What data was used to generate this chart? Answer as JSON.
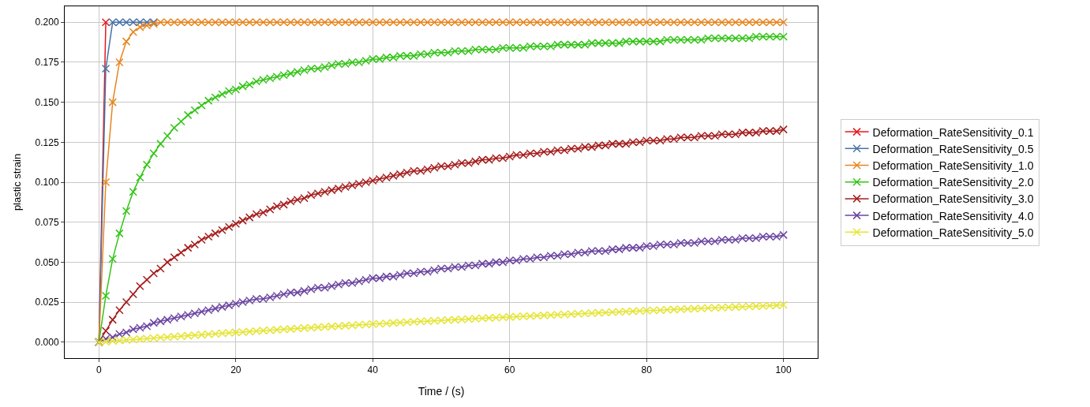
{
  "chart_data": {
    "type": "line",
    "xlabel": "Time / (s)",
    "ylabel": "plastic strain",
    "marker": "cross",
    "line_style": "solid",
    "grid": true,
    "legend": "right",
    "xlim": [
      -5,
      105
    ],
    "xticks": [
      0,
      20,
      40,
      60,
      80,
      100
    ],
    "ylim": [
      -0.01,
      0.21
    ],
    "yticks": [
      {
        "value": 0,
        "label": "0.000"
      },
      {
        "value": 0.025,
        "label": "0.025"
      },
      {
        "value": 0.05,
        "label": "0.050"
      },
      {
        "value": 0.075,
        "label": "0.075"
      },
      {
        "value": 0.1,
        "label": "0.100"
      },
      {
        "value": 0.125,
        "label": "0.125"
      },
      {
        "value": 0.15,
        "label": "0.150"
      },
      {
        "value": 0.175,
        "label": "0.175"
      },
      {
        "value": 0.2,
        "label": "0.200"
      }
    ],
    "x": [
      0,
      1,
      2,
      3,
      4,
      5,
      6,
      7,
      8,
      9,
      10,
      11,
      12,
      13,
      14,
      15,
      16,
      17,
      18,
      19,
      20,
      21,
      22,
      23,
      24,
      25,
      26,
      27,
      28,
      29,
      30,
      31,
      32,
      33,
      34,
      35,
      36,
      37,
      38,
      39,
      40,
      41,
      42,
      43,
      44,
      45,
      46,
      47,
      48,
      49,
      50,
      51,
      52,
      53,
      54,
      55,
      56,
      57,
      58,
      59,
      60,
      61,
      62,
      63,
      64,
      65,
      66,
      67,
      68,
      69,
      70,
      71,
      72,
      73,
      74,
      75,
      76,
      77,
      78,
      79,
      80,
      81,
      82,
      83,
      84,
      85,
      86,
      87,
      88,
      89,
      90,
      91,
      92,
      93,
      94,
      95,
      96,
      97,
      98,
      99,
      100
    ],
    "series": [
      {
        "name": "Deformation_RateSensitivity_0.1",
        "color": "#e41a1c",
        "values": [
          0,
          0.2,
          null,
          null,
          null,
          null,
          null,
          null,
          null,
          null,
          null,
          null,
          null,
          null,
          null,
          null,
          null,
          null,
          null,
          null,
          null,
          null,
          null,
          null,
          null,
          null,
          null,
          null,
          null,
          null,
          null,
          null,
          null,
          null,
          null,
          null,
          null,
          null,
          null,
          null,
          null,
          null,
          null,
          null,
          null,
          null,
          null,
          null,
          null,
          null,
          null,
          null,
          null,
          null,
          null,
          null,
          null,
          null,
          null,
          null,
          null,
          null,
          null,
          null,
          null,
          null,
          null,
          null,
          null,
          null,
          null,
          null,
          null,
          null,
          null,
          null,
          null,
          null,
          null,
          null,
          null,
          null,
          null,
          null,
          null,
          null,
          null,
          null,
          null,
          null,
          null,
          null,
          null,
          null,
          null,
          null,
          null,
          null,
          null,
          null,
          null
        ]
      },
      {
        "name": "Deformation_RateSensitivity_0.5",
        "color": "#4a72a8",
        "values": [
          0,
          0.171,
          0.2,
          0.2,
          0.2,
          0.2,
          0.2,
          0.2,
          0.2,
          null,
          null,
          null,
          null,
          null,
          null,
          null,
          null,
          null,
          null,
          null,
          null,
          null,
          null,
          null,
          null,
          null,
          null,
          null,
          null,
          null,
          null,
          null,
          null,
          null,
          null,
          null,
          null,
          null,
          null,
          null,
          null,
          null,
          null,
          null,
          null,
          null,
          null,
          null,
          null,
          null,
          null,
          null,
          null,
          null,
          null,
          null,
          null,
          null,
          null,
          null,
          null,
          null,
          null,
          null,
          null,
          null,
          null,
          null,
          null,
          null,
          null,
          null,
          null,
          null,
          null,
          null,
          null,
          null,
          null,
          null,
          null,
          null,
          null,
          null,
          null,
          null,
          null,
          null,
          null,
          null,
          null,
          null,
          null,
          null,
          null,
          null,
          null,
          null,
          null,
          null,
          null
        ]
      },
      {
        "name": "Deformation_RateSensitivity_1.0",
        "color": "#e6861f",
        "values": [
          0,
          0.1,
          0.15,
          0.175,
          0.188,
          0.194,
          0.197,
          0.198,
          0.199,
          0.2,
          0.2,
          0.2,
          0.2,
          0.2,
          0.2,
          0.2,
          0.2,
          0.2,
          0.2,
          0.2,
          0.2,
          0.2,
          0.2,
          0.2,
          0.2,
          0.2,
          0.2,
          0.2,
          0.2,
          0.2,
          0.2,
          0.2,
          0.2,
          0.2,
          0.2,
          0.2,
          0.2,
          0.2,
          0.2,
          0.2,
          0.2,
          0.2,
          0.2,
          0.2,
          0.2,
          0.2,
          0.2,
          0.2,
          0.2,
          0.2,
          0.2,
          0.2,
          0.2,
          0.2,
          0.2,
          0.2,
          0.2,
          0.2,
          0.2,
          0.2,
          0.2,
          0.2,
          0.2,
          0.2,
          0.2,
          0.2,
          0.2,
          0.2,
          0.2,
          0.2,
          0.2,
          0.2,
          0.2,
          0.2,
          0.2,
          0.2,
          0.2,
          0.2,
          0.2,
          0.2,
          0.2,
          0.2,
          0.2,
          0.2,
          0.2,
          0.2,
          0.2,
          0.2,
          0.2,
          0.2,
          0.2,
          0.2,
          0.2,
          0.2,
          0.2,
          0.2,
          0.2,
          0.2,
          0.2,
          0.2,
          0.2
        ]
      },
      {
        "name": "Deformation_RateSensitivity_2.0",
        "color": "#33c417",
        "values": [
          0,
          0.029,
          0.052,
          0.068,
          0.082,
          0.094,
          0.103,
          0.111,
          0.118,
          0.124,
          0.129,
          0.134,
          0.138,
          0.142,
          0.145,
          0.148,
          0.151,
          0.153,
          0.155,
          0.157,
          0.158,
          0.16,
          0.161,
          0.163,
          0.164,
          0.165,
          0.166,
          0.167,
          0.168,
          0.169,
          0.17,
          0.171,
          0.171,
          0.172,
          0.173,
          0.174,
          0.174,
          0.175,
          0.175,
          0.176,
          0.177,
          0.177,
          0.178,
          0.178,
          0.179,
          0.179,
          0.179,
          0.18,
          0.18,
          0.181,
          0.181,
          0.181,
          0.182,
          0.182,
          0.182,
          0.183,
          0.183,
          0.183,
          0.183,
          0.184,
          0.184,
          0.184,
          0.184,
          0.185,
          0.185,
          0.185,
          0.185,
          0.186,
          0.186,
          0.186,
          0.186,
          0.186,
          0.187,
          0.187,
          0.187,
          0.187,
          0.187,
          0.188,
          0.188,
          0.188,
          0.188,
          0.188,
          0.188,
          0.189,
          0.189,
          0.189,
          0.189,
          0.189,
          0.189,
          0.19,
          0.19,
          0.19,
          0.19,
          0.19,
          0.19,
          0.19,
          0.191,
          0.191,
          0.191,
          0.191,
          0.191
        ]
      },
      {
        "name": "Deformation_RateSensitivity_3.0",
        "color": "#a51c1c",
        "values": [
          0,
          0.007,
          0.014,
          0.02,
          0.025,
          0.03,
          0.035,
          0.039,
          0.043,
          0.046,
          0.05,
          0.053,
          0.056,
          0.059,
          0.061,
          0.064,
          0.066,
          0.068,
          0.07,
          0.072,
          0.074,
          0.076,
          0.078,
          0.08,
          0.081,
          0.083,
          0.085,
          0.086,
          0.088,
          0.089,
          0.09,
          0.092,
          0.093,
          0.094,
          0.095,
          0.096,
          0.097,
          0.098,
          0.099,
          0.1,
          0.101,
          0.102,
          0.103,
          0.104,
          0.105,
          0.106,
          0.107,
          0.107,
          0.108,
          0.109,
          0.11,
          0.11,
          0.111,
          0.112,
          0.112,
          0.113,
          0.114,
          0.114,
          0.115,
          0.115,
          0.116,
          0.117,
          0.117,
          0.118,
          0.118,
          0.119,
          0.119,
          0.12,
          0.12,
          0.121,
          0.121,
          0.122,
          0.122,
          0.123,
          0.123,
          0.124,
          0.124,
          0.124,
          0.125,
          0.125,
          0.126,
          0.126,
          0.126,
          0.127,
          0.127,
          0.128,
          0.128,
          0.128,
          0.129,
          0.129,
          0.129,
          0.13,
          0.13,
          0.13,
          0.131,
          0.131,
          0.131,
          0.132,
          0.132,
          0.132,
          0.133
        ]
      },
      {
        "name": "Deformation_RateSensitivity_4.0",
        "color": "#6a44a0",
        "values": [
          0,
          0.002,
          0.003,
          0.005,
          0.006,
          0.008,
          0.009,
          0.01,
          0.012,
          0.013,
          0.014,
          0.015,
          0.016,
          0.017,
          0.018,
          0.019,
          0.02,
          0.021,
          0.022,
          0.023,
          0.024,
          0.025,
          0.026,
          0.027,
          0.027,
          0.028,
          0.029,
          0.03,
          0.031,
          0.031,
          0.032,
          0.033,
          0.034,
          0.034,
          0.035,
          0.036,
          0.037,
          0.037,
          0.038,
          0.039,
          0.04,
          0.04,
          0.041,
          0.041,
          0.042,
          0.043,
          0.043,
          0.044,
          0.044,
          0.045,
          0.046,
          0.046,
          0.047,
          0.047,
          0.048,
          0.048,
          0.049,
          0.049,
          0.05,
          0.05,
          0.051,
          0.051,
          0.052,
          0.052,
          0.053,
          0.053,
          0.054,
          0.054,
          0.055,
          0.055,
          0.056,
          0.056,
          0.057,
          0.057,
          0.057,
          0.058,
          0.058,
          0.059,
          0.059,
          0.059,
          0.06,
          0.06,
          0.061,
          0.061,
          0.061,
          0.062,
          0.062,
          0.062,
          0.063,
          0.063,
          0.063,
          0.064,
          0.064,
          0.064,
          0.065,
          0.065,
          0.065,
          0.066,
          0.066,
          0.066,
          0.067
        ]
      },
      {
        "name": "Deformation_RateSensitivity_5.0",
        "color": "#e5e536",
        "values": [
          0,
          0.0003,
          0.0007,
          0.001,
          0.0013,
          0.0016,
          0.0019,
          0.0022,
          0.0025,
          0.0028,
          0.0031,
          0.0034,
          0.0037,
          0.004,
          0.0043,
          0.0046,
          0.0049,
          0.0052,
          0.0055,
          0.0058,
          0.0061,
          0.0063,
          0.0066,
          0.0069,
          0.0072,
          0.0074,
          0.0077,
          0.008,
          0.0082,
          0.0085,
          0.0088,
          0.009,
          0.0093,
          0.0095,
          0.0098,
          0.01,
          0.0103,
          0.0105,
          0.0108,
          0.011,
          0.0113,
          0.0115,
          0.0117,
          0.012,
          0.0122,
          0.0124,
          0.0127,
          0.0129,
          0.0131,
          0.0133,
          0.0136,
          0.0138,
          0.014,
          0.0142,
          0.0144,
          0.0147,
          0.0149,
          0.0151,
          0.0153,
          0.0155,
          0.0157,
          0.0159,
          0.0161,
          0.0163,
          0.0165,
          0.0167,
          0.0169,
          0.0171,
          0.0173,
          0.0175,
          0.0177,
          0.0179,
          0.0181,
          0.0183,
          0.0185,
          0.0187,
          0.0189,
          0.0191,
          0.0193,
          0.0195,
          0.0197,
          0.0198,
          0.02,
          0.0202,
          0.0204,
          0.0206,
          0.0207,
          0.0209,
          0.0211,
          0.0213,
          0.0214,
          0.0216,
          0.0218,
          0.022,
          0.0221,
          0.0223,
          0.0225,
          0.0226,
          0.0228,
          0.023,
          0.0233
        ]
      }
    ]
  }
}
